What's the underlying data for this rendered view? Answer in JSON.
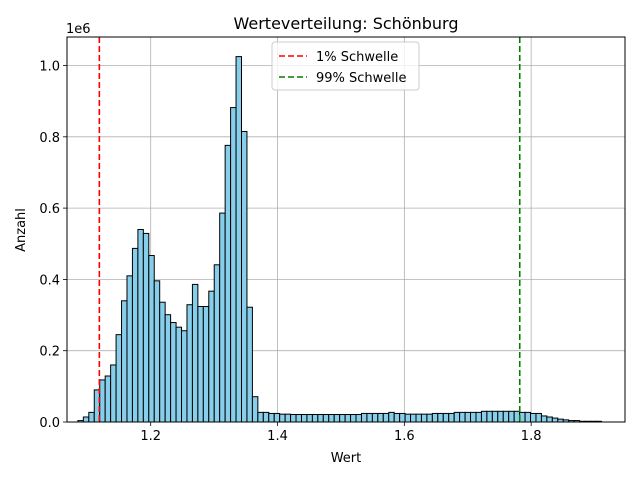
{
  "chart_data": {
    "type": "bar",
    "title": "Werteverteilung: Schönburg",
    "xlabel": "Wert",
    "ylabel": "Anzahl",
    "y_scale_label": "1e6",
    "xlim": [
      1.068,
      1.948
    ],
    "ylim": [
      0,
      1.08
    ],
    "grid": true,
    "bar_color": "#87ceeb",
    "bar_edge_color": "#000000",
    "x_ticks": [
      1.2,
      1.4,
      1.6,
      1.8
    ],
    "x_tick_labels": [
      "1.2",
      "1.4",
      "1.6",
      "1.8"
    ],
    "y_ticks": [
      0.0,
      0.2,
      0.4,
      0.6,
      0.8,
      1.0
    ],
    "y_tick_labels": [
      "0.0",
      "0.2",
      "0.4",
      "0.6",
      "0.8",
      "1.0"
    ],
    "bin_start": 1.0852,
    "bin_width": 0.0086,
    "values": [
      0.004,
      0.014,
      0.027,
      0.09,
      0.118,
      0.129,
      0.16,
      0.245,
      0.34,
      0.41,
      0.487,
      0.54,
      0.529,
      0.467,
      0.396,
      0.336,
      0.301,
      0.279,
      0.266,
      0.256,
      0.329,
      0.386,
      0.324,
      0.324,
      0.367,
      0.441,
      0.586,
      0.776,
      0.882,
      1.025,
      0.815,
      0.322,
      0.071,
      0.027,
      0.027,
      0.024,
      0.024,
      0.022,
      0.022,
      0.021,
      0.021,
      0.021,
      0.021,
      0.021,
      0.021,
      0.021,
      0.021,
      0.021,
      0.021,
      0.021,
      0.021,
      0.021,
      0.024,
      0.024,
      0.024,
      0.024,
      0.024,
      0.027,
      0.024,
      0.024,
      0.022,
      0.022,
      0.022,
      0.022,
      0.022,
      0.024,
      0.024,
      0.024,
      0.024,
      0.027,
      0.027,
      0.027,
      0.027,
      0.027,
      0.03,
      0.03,
      0.03,
      0.03,
      0.03,
      0.03,
      0.03,
      0.027,
      0.027,
      0.024,
      0.024,
      0.017,
      0.014,
      0.011,
      0.008,
      0.006,
      0.004,
      0.004,
      0.002,
      0.002,
      0.002,
      0.002
    ],
    "thresholds": [
      {
        "name": "1% Schwelle",
        "x": 1.119,
        "color": "#ff0000"
      },
      {
        "name": "99% Schwelle",
        "x": 1.782,
        "color": "#008000"
      }
    ],
    "legend_position": "upper center"
  }
}
